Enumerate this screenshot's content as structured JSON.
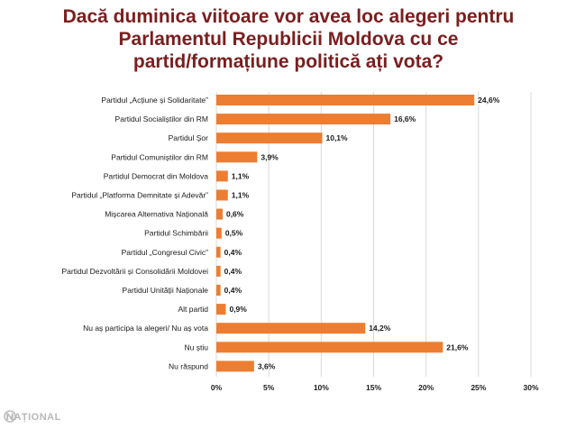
{
  "title": {
    "line1": "Dacă duminica viitoare vor avea loc alegeri pentru",
    "line2": "Parlamentul Republicii Moldova cu ce",
    "line3": "partid/formațiune politică ați vota?"
  },
  "brand": {
    "logo_text": "NAȚIONAL"
  },
  "colors": {
    "bar": "#ed7d31",
    "title": "#7a1e1e",
    "grid": "#d9d9d9"
  },
  "chart_data": {
    "type": "bar",
    "orientation": "horizontal",
    "categories": [
      "Partidul „Acțiune și Solidaritate”",
      "Partidul Socialiștilor din RM",
      "Partidul Șor",
      "Partidul Comuniștilor din RM",
      "Partidul Democrat din Moldova",
      "Partidul „Platforma Demnitate și Adevăr”",
      "Mișcarea Alternativa Națională",
      "Partidul Schimbării",
      "Partidul „Congresul Civic”",
      "Partidul Dezvoltării și Consolidării Moldovei",
      "Partidul Unității Naționale",
      "Alt partid",
      "Nu aș participa la alegeri/ Nu aș vota",
      "Nu știu",
      "Nu răspund"
    ],
    "values": [
      24.6,
      16.6,
      10.1,
      3.9,
      1.1,
      1.1,
      0.6,
      0.5,
      0.4,
      0.4,
      0.4,
      0.9,
      14.2,
      21.6,
      3.6
    ],
    "value_labels": [
      "24,6%",
      "16,6%",
      "10,1%",
      "3,9%",
      "1,1%",
      "1,1%",
      "0,6%",
      "0,5%",
      "0,4%",
      "0,4%",
      "0,4%",
      "0,9%",
      "14,2%",
      "21,6%",
      "3,6%"
    ],
    "x_ticks": [
      0,
      5,
      10,
      15,
      20,
      25,
      30
    ],
    "x_tick_labels": [
      "0%",
      "5%",
      "10%",
      "15%",
      "20%",
      "25%",
      "30%"
    ],
    "xlim": [
      0,
      30
    ],
    "grid": true,
    "legend": "none",
    "xlabel": "",
    "ylabel": ""
  }
}
